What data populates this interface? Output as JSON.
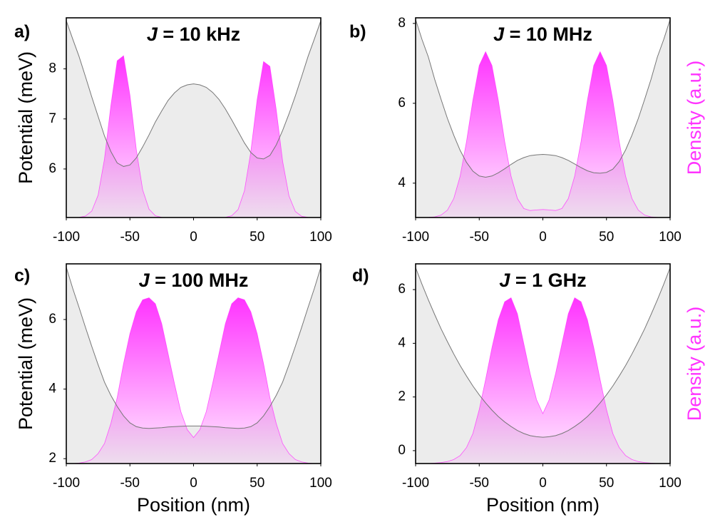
{
  "chart_data": [
    {
      "type": "line",
      "label": "a)",
      "title": "J = 10 kHz",
      "ylabel": "Potential (meV)",
      "x": [
        -100,
        -95,
        -90,
        -85,
        -80,
        -75,
        -70,
        -65,
        -60,
        -55,
        -50,
        -45,
        -40,
        -35,
        -30,
        -25,
        -20,
        -15,
        -10,
        -5,
        0,
        5,
        10,
        15,
        20,
        25,
        30,
        35,
        40,
        45,
        50,
        55,
        60,
        65,
        70,
        75,
        80,
        85,
        90,
        95,
        100
      ],
      "xlim": [
        -100,
        100
      ],
      "xticks": [
        -100,
        -50,
        0,
        50,
        100
      ],
      "ylim": [
        5.03,
        9.02
      ],
      "yticks": [
        6,
        7,
        8
      ],
      "y2lim": [
        0,
        1
      ],
      "series": [
        {
          "color": "#777777",
          "fill": "#ececec",
          "values": [
            8.96,
            8.6,
            8.25,
            7.85,
            7.44,
            7.05,
            6.66,
            6.35,
            6.12,
            6.05,
            6.08,
            6.22,
            6.44,
            6.68,
            6.94,
            7.16,
            7.37,
            7.52,
            7.63,
            7.68,
            7.7,
            7.68,
            7.63,
            7.53,
            7.39,
            7.2,
            6.98,
            6.75,
            6.52,
            6.33,
            6.22,
            6.2,
            6.27,
            6.48,
            6.77,
            7.1,
            7.46,
            7.85,
            8.25,
            8.6,
            8.96
          ]
        },
        {
          "color": "#ff33ff",
          "axis": "y2",
          "values": [
            0,
            0,
            0.001,
            0.007,
            0.032,
            0.112,
            0.293,
            0.559,
            0.785,
            0.81,
            0.613,
            0.341,
            0.139,
            0.042,
            0.009,
            0.001,
            0,
            0,
            0,
            0,
            0,
            0,
            0,
            0,
            0,
            0.001,
            0.009,
            0.04,
            0.134,
            0.329,
            0.591,
            0.781,
            0.757,
            0.539,
            0.282,
            0.108,
            0.03,
            0.006,
            0.001,
            0,
            0
          ]
        }
      ]
    },
    {
      "type": "line",
      "label": "b)",
      "title": "J = 10 MHz",
      "y2label": "Density (a.u.)",
      "x": [
        -100,
        -95,
        -90,
        -85,
        -80,
        -75,
        -70,
        -65,
        -60,
        -55,
        -50,
        -45,
        -40,
        -35,
        -30,
        -25,
        -20,
        -15,
        -10,
        -5,
        0,
        5,
        10,
        15,
        20,
        25,
        30,
        35,
        40,
        45,
        50,
        55,
        60,
        65,
        70,
        75,
        80,
        85,
        90,
        95,
        100
      ],
      "xlim": [
        -100,
        100
      ],
      "xticks": [
        -100,
        -50,
        0,
        50,
        100
      ],
      "ylim": [
        3.14,
        8.14
      ],
      "yticks": [
        4,
        6,
        8
      ],
      "y2lim": [
        0,
        1
      ],
      "series": [
        {
          "color": "#777777",
          "fill": "#ececec",
          "values": [
            8.1,
            7.6,
            7.16,
            6.6,
            6.1,
            5.62,
            5.2,
            4.82,
            4.52,
            4.3,
            4.18,
            4.15,
            4.18,
            4.26,
            4.36,
            4.47,
            4.57,
            4.64,
            4.69,
            4.71,
            4.72,
            4.71,
            4.69,
            4.64,
            4.57,
            4.48,
            4.39,
            4.31,
            4.26,
            4.25,
            4.27,
            4.35,
            4.54,
            4.83,
            5.2,
            5.62,
            6.1,
            6.6,
            7.16,
            7.6,
            8.1
          ]
        },
        {
          "color": "#ff33ff",
          "axis": "y2",
          "values": [
            0,
            0,
            0.001,
            0.003,
            0.012,
            0.037,
            0.095,
            0.207,
            0.38,
            0.587,
            0.761,
            0.83,
            0.761,
            0.587,
            0.38,
            0.207,
            0.095,
            0.045,
            0.035,
            0.038,
            0.04,
            0.038,
            0.035,
            0.045,
            0.095,
            0.207,
            0.38,
            0.587,
            0.761,
            0.83,
            0.761,
            0.587,
            0.38,
            0.207,
            0.095,
            0.037,
            0.012,
            0.003,
            0.001,
            0,
            0
          ]
        }
      ]
    },
    {
      "type": "line",
      "label": "c)",
      "title": "J = 100 MHz",
      "ylabel": "Potential (meV)",
      "xlabel": "Position (nm)",
      "x": [
        -100,
        -95,
        -90,
        -85,
        -80,
        -75,
        -70,
        -65,
        -60,
        -55,
        -50,
        -45,
        -40,
        -35,
        -30,
        -25,
        -20,
        -15,
        -10,
        -5,
        0,
        5,
        10,
        15,
        20,
        25,
        30,
        35,
        40,
        45,
        50,
        55,
        60,
        65,
        70,
        75,
        80,
        85,
        90,
        95,
        100
      ],
      "xlim": [
        -100,
        100
      ],
      "xticks": [
        -100,
        -50,
        0,
        50,
        100
      ],
      "ylim": [
        1.86,
        7.6
      ],
      "yticks": [
        2,
        4,
        6
      ],
      "y2lim": [
        0,
        1
      ],
      "series": [
        {
          "color": "#777777",
          "fill": "#ececec",
          "values": [
            7.5,
            6.9,
            6.35,
            5.78,
            5.23,
            4.7,
            4.2,
            3.82,
            3.5,
            3.23,
            3.03,
            2.92,
            2.88,
            2.87,
            2.88,
            2.89,
            2.91,
            2.92,
            2.93,
            2.94,
            2.94,
            2.94,
            2.93,
            2.92,
            2.91,
            2.89,
            2.88,
            2.87,
            2.88,
            2.92,
            3.03,
            3.23,
            3.5,
            3.82,
            4.2,
            4.7,
            5.23,
            5.78,
            6.35,
            6.9,
            7.5
          ]
        },
        {
          "color": "#ff33ff",
          "axis": "y2",
          "values": [
            0,
            0,
            0.002,
            0.008,
            0.02,
            0.05,
            0.1,
            0.2,
            0.33,
            0.5,
            0.65,
            0.76,
            0.82,
            0.83,
            0.8,
            0.7,
            0.55,
            0.4,
            0.26,
            0.17,
            0.13,
            0.17,
            0.26,
            0.4,
            0.55,
            0.7,
            0.8,
            0.83,
            0.82,
            0.76,
            0.65,
            0.5,
            0.33,
            0.2,
            0.1,
            0.05,
            0.02,
            0.008,
            0.002,
            0,
            0
          ]
        }
      ]
    },
    {
      "type": "line",
      "label": "d)",
      "title": "J = 1 GHz",
      "y2label": "Density (a.u.)",
      "xlabel": "Position (nm)",
      "x": [
        -100,
        -95,
        -90,
        -85,
        -80,
        -75,
        -70,
        -65,
        -60,
        -55,
        -50,
        -45,
        -40,
        -35,
        -30,
        -25,
        -20,
        -15,
        -10,
        -5,
        0,
        5,
        10,
        15,
        20,
        25,
        30,
        35,
        40,
        45,
        50,
        55,
        60,
        65,
        70,
        75,
        80,
        85,
        90,
        95,
        100
      ],
      "xlim": [
        -100,
        100
      ],
      "xticks": [
        -100,
        -50,
        0,
        50,
        100
      ],
      "ylim": [
        -0.48,
        6.96
      ],
      "yticks": [
        0,
        2,
        4,
        6
      ],
      "y2lim": [
        0,
        1
      ],
      "series": [
        {
          "color": "#777777",
          "fill": "#ececec",
          "values": [
            6.82,
            6.2,
            5.62,
            5.07,
            4.54,
            4.06,
            3.6,
            3.17,
            2.78,
            2.41,
            2.08,
            1.78,
            1.51,
            1.27,
            1.07,
            0.9,
            0.75,
            0.64,
            0.56,
            0.52,
            0.5,
            0.52,
            0.56,
            0.64,
            0.75,
            0.9,
            1.07,
            1.27,
            1.51,
            1.78,
            2.08,
            2.41,
            2.78,
            3.17,
            3.6,
            4.06,
            4.54,
            5.07,
            5.62,
            6.2,
            6.82
          ]
        },
        {
          "color": "#ff33ff",
          "axis": "y2",
          "values": [
            0,
            0,
            0,
            0.002,
            0.005,
            0.01,
            0.02,
            0.04,
            0.08,
            0.15,
            0.27,
            0.42,
            0.58,
            0.72,
            0.81,
            0.83,
            0.75,
            0.6,
            0.45,
            0.32,
            0.25,
            0.32,
            0.45,
            0.6,
            0.75,
            0.83,
            0.81,
            0.72,
            0.58,
            0.42,
            0.27,
            0.15,
            0.08,
            0.04,
            0.02,
            0.01,
            0.005,
            0.002,
            0,
            0,
            0
          ]
        }
      ]
    }
  ]
}
